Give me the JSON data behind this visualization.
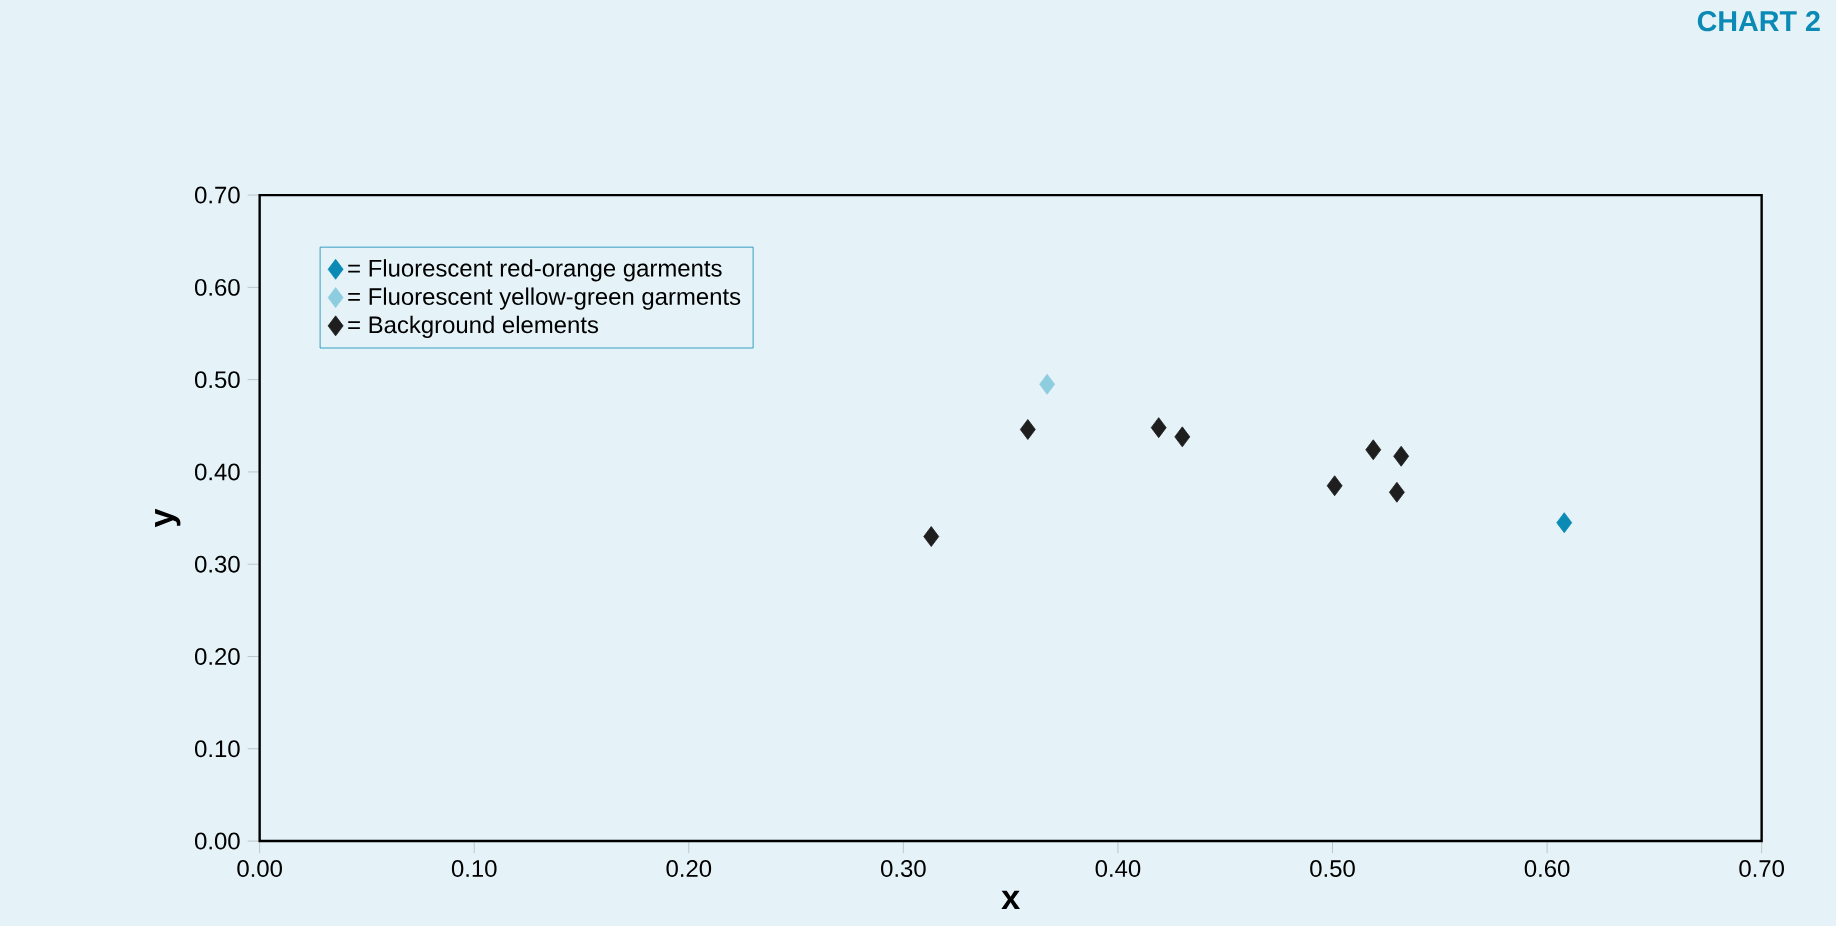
{
  "chart_data": {
    "type": "scatter",
    "title": "CHART 2",
    "xlabel": "x",
    "ylabel": "y",
    "marker": "diamond",
    "legend": "top left",
    "grid": false,
    "xlim": [
      0,
      0.7
    ],
    "ylim": [
      0,
      0.7
    ],
    "xticks": [
      {
        "value": 0,
        "label": "0.00"
      },
      {
        "value": 0.1,
        "label": "0.10"
      },
      {
        "value": 0.2,
        "label": "0.20"
      },
      {
        "value": 0.3,
        "label": "0.30"
      },
      {
        "value": 0.4,
        "label": "0.40"
      },
      {
        "value": 0.5,
        "label": "0.50"
      },
      {
        "value": 0.6,
        "label": "0.60"
      },
      {
        "value": 0.7,
        "label": "0.70"
      }
    ],
    "yticks": [
      {
        "value": 0,
        "label": "0.00"
      },
      {
        "value": 0.1,
        "label": "0.10"
      },
      {
        "value": 0.2,
        "label": "0.20"
      },
      {
        "value": 0.3,
        "label": "0.30"
      },
      {
        "value": 0.4,
        "label": "0.40"
      },
      {
        "value": 0.5,
        "label": "0.50"
      },
      {
        "value": 0.6,
        "label": "0.60"
      },
      {
        "value": 0.7,
        "label": "0.70"
      }
    ],
    "series": [
      {
        "name": "= Fluorescent red-orange garments",
        "color": "#0a8ab5",
        "x": [
          0.608
        ],
        "values": [
          0.345
        ]
      },
      {
        "name": "= Fluorescent yellow-green garments",
        "color": "#8ecde0",
        "x": [
          0.367
        ],
        "values": [
          0.495
        ]
      },
      {
        "name": "= Background elements",
        "color": "#1e1e1e",
        "x": [
          0.358,
          0.419,
          0.43,
          0.519,
          0.532,
          0.501,
          0.53,
          0.313
        ],
        "values": [
          0.446,
          0.448,
          0.438,
          0.424,
          0.417,
          0.385,
          0.378,
          0.33
        ]
      }
    ]
  }
}
